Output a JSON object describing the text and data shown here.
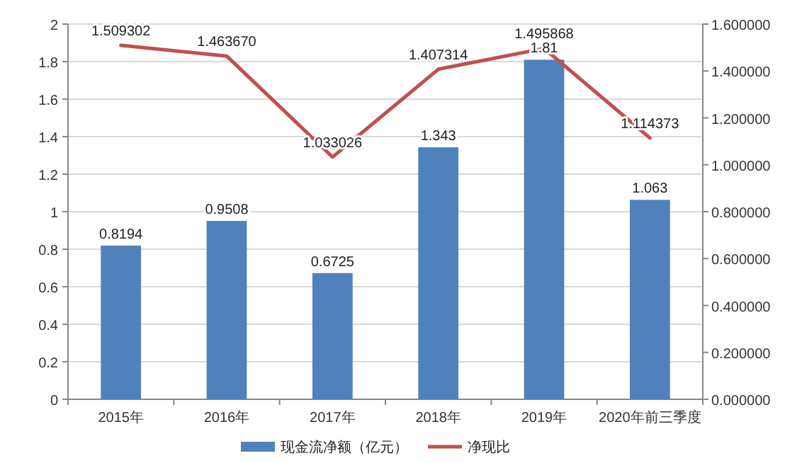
{
  "chart_data": {
    "type": "bar",
    "categories": [
      "2015年",
      "2016年",
      "2017年",
      "2018年",
      "2019年",
      "2020年前三季度"
    ],
    "series": [
      {
        "name": "现金流净额（亿元）",
        "color": "#4f81bd",
        "values": [
          0.8194,
          0.9508,
          0.6725,
          1.343,
          1.81,
          1.063
        ],
        "value_labels": [
          "0.8194",
          "0.9508",
          "0.6725",
          "1.343",
          "1.81",
          "1.063"
        ]
      },
      {
        "name": "净现比",
        "type": "line",
        "axis": "y2",
        "color": "#c0504d",
        "values": [
          1.509302,
          1.46367,
          1.033026,
          1.407314,
          1.495868,
          1.114373
        ],
        "value_labels": [
          "1.509302",
          "1.463670",
          "1.033026",
          "1.407314",
          "1.495868",
          "1.114373"
        ]
      }
    ],
    "ylim": [
      0,
      2
    ],
    "yticks": [
      0,
      0.2,
      0.4,
      0.6,
      0.8,
      1,
      1.2,
      1.4,
      1.6,
      1.8,
      2
    ],
    "y2lim": [
      0,
      1.6
    ],
    "y2ticks": [
      {
        "value": 0,
        "label": "0.000000"
      },
      {
        "value": 0.2,
        "label": "0.200000"
      },
      {
        "value": 0.4,
        "label": "0.400000"
      },
      {
        "value": 0.6,
        "label": "0.600000"
      },
      {
        "value": 0.8,
        "label": "0.800000"
      },
      {
        "value": 1,
        "label": "1.000000"
      },
      {
        "value": 1.2,
        "label": "1.200000"
      },
      {
        "value": 1.4,
        "label": "1.400000"
      },
      {
        "value": 1.6,
        "label": "1.600000"
      }
    ],
    "grid": "y",
    "legend": "bottom",
    "marker": "none",
    "line_style": "solid"
  }
}
